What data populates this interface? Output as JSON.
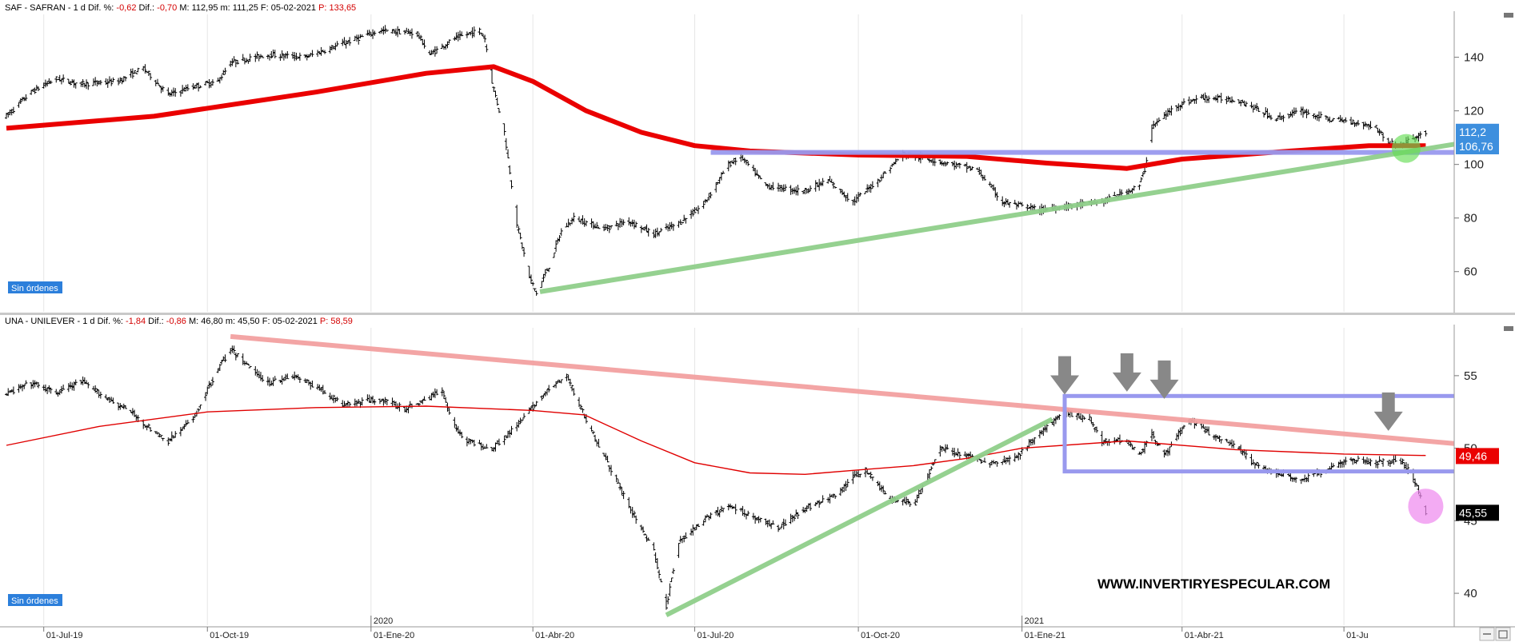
{
  "chart_data": [
    {
      "type": "candlestick",
      "title": "SAF - SAFRAN",
      "header": {
        "symbol": "SAF - SAFRAN",
        "period": "1 d",
        "dif_pct_label": "Dif. %:",
        "dif_pct": "-0,62",
        "dif_label": "Dif.:",
        "dif": "-0,70",
        "max_label": "M:",
        "max": "112,95",
        "min_label": "m:",
        "min": "111,25",
        "date_label": "F:",
        "date": "05-02-2021",
        "p_label": "P:",
        "p": "133,65"
      },
      "ylim": [
        45,
        156
      ],
      "yticks": [
        60,
        80,
        100,
        120,
        140
      ],
      "ytick_labels": [
        "60",
        "80",
        "100",
        "120",
        "140"
      ],
      "price_path": [
        [
          "2019-06-10",
          118
        ],
        [
          "2019-06-24",
          127
        ],
        [
          "2019-07-08",
          132
        ],
        [
          "2019-07-22",
          130
        ],
        [
          "2019-08-12",
          131
        ],
        [
          "2019-08-26",
          136
        ],
        [
          "2019-09-09",
          126
        ],
        [
          "2019-09-23",
          129
        ],
        [
          "2019-10-07",
          131
        ],
        [
          "2019-10-14",
          138
        ],
        [
          "2019-11-04",
          141
        ],
        [
          "2019-11-25",
          140
        ],
        [
          "2019-12-16",
          145
        ],
        [
          "2020-01-06",
          150
        ],
        [
          "2020-01-27",
          149
        ],
        [
          "2020-02-03",
          141
        ],
        [
          "2020-02-17",
          147
        ],
        [
          "2020-03-02",
          150
        ],
        [
          "2020-03-05",
          147
        ],
        [
          "2020-03-09",
          131
        ],
        [
          "2020-03-16",
          112
        ],
        [
          "2020-03-23",
          78
        ],
        [
          "2020-03-30",
          58
        ],
        [
          "2020-04-03",
          52
        ],
        [
          "2020-04-10",
          62
        ],
        [
          "2020-04-17",
          75
        ],
        [
          "2020-04-24",
          80
        ],
        [
          "2020-05-11",
          76
        ],
        [
          "2020-05-25",
          79
        ],
        [
          "2020-06-08",
          74
        ],
        [
          "2020-06-22",
          78
        ],
        [
          "2020-07-06",
          85
        ],
        [
          "2020-07-20",
          100
        ],
        [
          "2020-07-27",
          103
        ],
        [
          "2020-08-10",
          92
        ],
        [
          "2020-08-31",
          90
        ],
        [
          "2020-09-14",
          94
        ],
        [
          "2020-09-28",
          86
        ],
        [
          "2020-10-12",
          94
        ],
        [
          "2020-10-26",
          104
        ],
        [
          "2020-11-09",
          102
        ],
        [
          "2020-11-23",
          100
        ],
        [
          "2020-12-07",
          98
        ],
        [
          "2020-12-21",
          86
        ],
        [
          "2021-01-11",
          83
        ],
        [
          "2021-02-01",
          85
        ],
        [
          "2021-02-15",
          86
        ],
        [
          "2021-03-01",
          90
        ],
        [
          "2021-03-08",
          92
        ],
        [
          "2021-03-11",
          98
        ],
        [
          "2021-03-15",
          114
        ],
        [
          "2021-03-29",
          122
        ],
        [
          "2021-04-12",
          125
        ],
        [
          "2021-05-03",
          124
        ],
        [
          "2021-05-24",
          117
        ],
        [
          "2021-06-07",
          120
        ],
        [
          "2021-06-21",
          117
        ],
        [
          "2021-07-05",
          116
        ],
        [
          "2021-07-19",
          114
        ],
        [
          "2021-07-26",
          108
        ],
        [
          "2021-08-02",
          107
        ],
        [
          "2021-08-09",
          110
        ],
        [
          "2021-08-16",
          112
        ]
      ],
      "moving_average": [
        [
          "2019-06-10",
          113.5
        ],
        [
          "2019-09-01",
          118
        ],
        [
          "2019-12-01",
          127
        ],
        [
          "2020-02-01",
          134
        ],
        [
          "2020-03-10",
          136.5
        ],
        [
          "2020-04-01",
          131
        ],
        [
          "2020-05-01",
          120
        ],
        [
          "2020-06-01",
          112
        ],
        [
          "2020-07-01",
          107
        ],
        [
          "2020-08-01",
          105
        ],
        [
          "2020-10-01",
          103.5
        ],
        [
          "2020-12-01",
          103
        ],
        [
          "2021-01-15",
          100.5
        ],
        [
          "2021-03-01",
          98.5
        ],
        [
          "2021-04-01",
          102
        ],
        [
          "2021-06-01",
          105
        ],
        [
          "2021-07-15",
          107
        ],
        [
          "2021-08-16",
          107
        ]
      ],
      "annotations": {
        "support_line": [
          [
            "2020-04-05",
            52.5
          ],
          [
            "2021-09-10",
            108.5
          ]
        ],
        "resistance_line": [
          [
            "2020-07-10",
            104.5
          ],
          [
            "2021-09-20",
            104.5
          ]
        ],
        "highlight_circle": [
          "2021-08-05",
          106,
          18
        ],
        "moving_average_color": "#ea0000",
        "support_color": "#8fcf8a",
        "resistance_color": "#9999ee",
        "highlight_color": "#66dd55"
      },
      "price_labels": [
        {
          "text": "112,2",
          "value": 112.2,
          "color": "#3d8fde"
        },
        {
          "text": "106,76",
          "value": 106.76,
          "color": "#3d8fde"
        }
      ],
      "orders_badge": "Sin órdenes"
    },
    {
      "type": "candlestick",
      "title": "UNA - UNILEVER",
      "header": {
        "symbol": "UNA - UNILEVER",
        "period": "1 d",
        "dif_pct_label": "Dif. %:",
        "dif_pct": "-1,84",
        "dif_label": "Dif.:",
        "dif": "-0,86",
        "max_label": "M:",
        "max": "46,80",
        "min_label": "m:",
        "min": "45,50",
        "date_label": "F:",
        "date": "05-02-2021",
        "p_label": "P:",
        "p": "58,59"
      },
      "ylim": [
        37.8,
        58.3
      ],
      "yticks": [
        40,
        45,
        50,
        55
      ],
      "ytick_labels": [
        "40",
        "45",
        "50",
        "55"
      ],
      "price_path": [
        [
          "2019-06-10",
          53.7
        ],
        [
          "2019-06-24",
          54.5
        ],
        [
          "2019-07-08",
          53.8
        ],
        [
          "2019-07-22",
          54.6
        ],
        [
          "2019-08-05",
          53.5
        ],
        [
          "2019-08-19",
          52.5
        ],
        [
          "2019-09-02",
          51.0
        ],
        [
          "2019-09-09",
          50.5
        ],
        [
          "2019-09-23",
          52.0
        ],
        [
          "2019-10-07",
          55.5
        ],
        [
          "2019-10-14",
          56.8
        ],
        [
          "2019-10-21",
          56.0
        ],
        [
          "2019-11-04",
          54.5
        ],
        [
          "2019-11-18",
          55.0
        ],
        [
          "2019-12-02",
          54.2
        ],
        [
          "2019-12-16",
          53.0
        ],
        [
          "2020-01-06",
          53.4
        ],
        [
          "2020-01-20",
          52.7
        ],
        [
          "2020-02-03",
          53.5
        ],
        [
          "2020-02-10",
          54.0
        ],
        [
          "2020-02-17",
          51.5
        ],
        [
          "2020-02-24",
          50.5
        ],
        [
          "2020-03-09",
          50.0
        ],
        [
          "2020-03-23",
          51.5
        ],
        [
          "2020-04-06",
          53.6
        ],
        [
          "2020-04-20",
          55.0
        ],
        [
          "2020-04-27",
          53.0
        ],
        [
          "2020-05-11",
          49.5
        ],
        [
          "2020-05-25",
          46.0
        ],
        [
          "2020-06-08",
          43.0
        ],
        [
          "2020-06-15",
          39.0
        ],
        [
          "2020-06-22",
          43.5
        ],
        [
          "2020-07-06",
          45.0
        ],
        [
          "2020-07-20",
          46.0
        ],
        [
          "2020-08-03",
          45.3
        ],
        [
          "2020-08-17",
          44.5
        ],
        [
          "2020-08-31",
          45.8
        ],
        [
          "2020-09-14",
          46.5
        ],
        [
          "2020-09-21",
          47.0
        ],
        [
          "2020-09-28",
          48.0
        ],
        [
          "2020-10-05",
          48.5
        ],
        [
          "2020-10-19",
          46.5
        ],
        [
          "2020-11-02",
          46.2
        ],
        [
          "2020-11-16",
          50.0
        ],
        [
          "2020-11-30",
          49.5
        ],
        [
          "2020-12-14",
          49.0
        ],
        [
          "2020-12-28",
          49.3
        ],
        [
          "2021-01-11",
          51.0
        ],
        [
          "2021-01-25",
          52.5
        ],
        [
          "2021-02-08",
          52.0
        ],
        [
          "2021-02-15",
          50.5
        ],
        [
          "2021-03-01",
          50.6
        ],
        [
          "2021-03-08",
          49.5
        ],
        [
          "2021-03-15",
          51.0
        ],
        [
          "2021-03-22",
          49.5
        ],
        [
          "2021-04-05",
          52.0
        ],
        [
          "2021-04-19",
          50.8
        ],
        [
          "2021-05-03",
          50.0
        ],
        [
          "2021-05-10",
          49.0
        ],
        [
          "2021-05-24",
          48.3
        ],
        [
          "2021-06-07",
          47.8
        ],
        [
          "2021-06-21",
          48.5
        ],
        [
          "2021-07-05",
          49.2
        ],
        [
          "2021-07-19",
          49.0
        ],
        [
          "2021-08-02",
          49.2
        ],
        [
          "2021-08-09",
          48.0
        ],
        [
          "2021-08-16",
          45.6
        ]
      ],
      "moving_average": [
        [
          "2019-06-10",
          50.2
        ],
        [
          "2019-08-01",
          51.5
        ],
        [
          "2019-10-01",
          52.5
        ],
        [
          "2019-12-01",
          52.8
        ],
        [
          "2020-02-01",
          52.9
        ],
        [
          "2020-04-01",
          52.6
        ],
        [
          "2020-04-30",
          52.3
        ],
        [
          "2020-06-01",
          50.5
        ],
        [
          "2020-07-01",
          49.0
        ],
        [
          "2020-08-01",
          48.3
        ],
        [
          "2020-09-01",
          48.2
        ],
        [
          "2020-10-01",
          48.5
        ],
        [
          "2020-11-01",
          48.8
        ],
        [
          "2020-12-01",
          49.3
        ],
        [
          "2021-01-01",
          50.0
        ],
        [
          "2021-03-01",
          50.5
        ],
        [
          "2021-05-01",
          49.9
        ],
        [
          "2021-07-01",
          49.6
        ],
        [
          "2021-08-16",
          49.5
        ]
      ],
      "annotations": {
        "down_trend_line": [
          [
            "2019-10-14",
            57.7
          ],
          [
            "2021-10-01",
            50.0
          ]
        ],
        "up_trend_line": [
          [
            "2020-06-15",
            38.5
          ],
          [
            "2021-01-18",
            52.0
          ]
        ],
        "range_box": [
          [
            "2021-01-25",
            48.4
          ],
          [
            "2021-11-15",
            53.6
          ]
        ],
        "arrows": [
          [
            "2021-01-25",
            53.7
          ],
          [
            "2021-03-01",
            53.9
          ],
          [
            "2021-03-22",
            53.4
          ],
          [
            "2021-07-26",
            51.2
          ]
        ],
        "highlight_circle": [
          "2021-08-16",
          46.0,
          22
        ],
        "moving_average_color": "#e00000",
        "down_trend_color": "#f2a0a0",
        "up_trend_color": "#8fcf8a",
        "range_color": "#9999ee",
        "arrow_color": "#888888",
        "highlight_color": "#ee88ee"
      },
      "price_labels": [
        {
          "text": "49,46",
          "value": 49.46,
          "color": "#ea0000"
        },
        {
          "text": "45,55",
          "value": 45.55,
          "color": "#000000"
        }
      ],
      "orders_badge": "Sin órdenes",
      "watermark": "WWW.INVERTIRYESPECULAR.COM"
    }
  ],
  "x_axis": {
    "ticks": [
      {
        "date": "2019-07-01",
        "label": "01-Jul-19"
      },
      {
        "date": "2019-10-01",
        "label": "01-Oct-19"
      },
      {
        "date": "2020-01-01",
        "label": "01-Ene-20"
      },
      {
        "date": "2020-04-01",
        "label": "01-Abr-20"
      },
      {
        "date": "2020-07-01",
        "label": "01-Jul-20"
      },
      {
        "date": "2020-10-01",
        "label": "01-Oct-20"
      },
      {
        "date": "2021-01-01",
        "label": "01-Ene-21"
      },
      {
        "date": "2021-04-01",
        "label": "01-Abr-21"
      },
      {
        "date": "2021-07-01",
        "label": "01-Ju"
      }
    ],
    "year_marks": [
      {
        "date": "2020-01-01",
        "label": "2020"
      },
      {
        "date": "2021-01-01",
        "label": "2021"
      }
    ]
  },
  "colors": {
    "candle": "#000000",
    "background": "#ffffff",
    "badge": "#2c7fdb",
    "separator": "#c8c8c8"
  }
}
